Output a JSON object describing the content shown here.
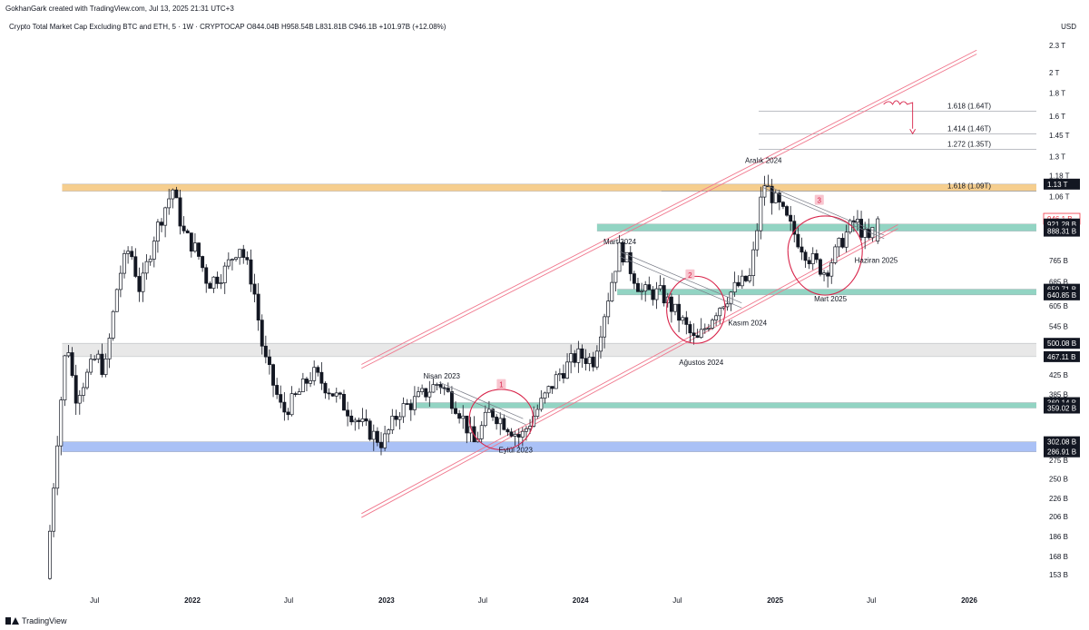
{
  "header": {
    "credit": "GokhanGark created with TradingView.com, Jul 13, 2025 21:31 UTC+3",
    "symbol_line": "Crypto Total Market Cap Excluding BTC and ETH, 5 · 1W · CRYPTOCAP  O844.04B  H958.54B  L831.81B  C946.1B  +101.97B (+12.08%)",
    "currency": "USD"
  },
  "footer": {
    "brand": "TradingView"
  },
  "colors": {
    "orange_zone": "#f5c57a",
    "teal_zone": "#7fcdb8",
    "grey_zone": "#e4e4e4",
    "blue_zone": "#9bb6f5",
    "channel": "#f0768c",
    "ellipse": "#d8244a",
    "candle": "#131722",
    "current_price": "#f23645"
  },
  "chart_data": {
    "type": "candlestick",
    "y_scale": "log",
    "y_ticks": [
      "2.3 T",
      "2 T",
      "1.8 T",
      "1.6 T",
      "1.45 T",
      "1.3 T",
      "1.18 T",
      "1.06 T",
      "765 B",
      "685 B",
      "605 B",
      "545 B",
      "425 B",
      "385 B",
      "275 B",
      "250 B",
      "226 B",
      "206 B",
      "186 B",
      "168 B",
      "153 B"
    ],
    "y_tick_values": [
      2300,
      2000,
      1800,
      1600,
      1450,
      1300,
      1180,
      1060,
      765,
      685,
      605,
      545,
      425,
      385,
      275,
      250,
      226,
      206,
      186,
      168,
      153
    ],
    "x_ticks": [
      "Jul",
      "2022",
      "Jul",
      "2023",
      "Jul",
      "2024",
      "Jul",
      "2025",
      "Jul",
      "2026"
    ],
    "x_tick_dates": [
      "2021-07-01",
      "2022-01-01",
      "2022-07-01",
      "2023-01-01",
      "2023-07-01",
      "2024-01-01",
      "2024-07-01",
      "2025-01-01",
      "2025-07-01",
      "2026-01-01"
    ],
    "price_tags": [
      {
        "label": "1.13 T",
        "value": 1130,
        "style": "dark"
      },
      {
        "label": "946.1 B",
        "value": 946.1,
        "style": "current"
      },
      {
        "label": "921.28 B",
        "value": 921.28,
        "style": "dark"
      },
      {
        "label": "888.31 B",
        "value": 888.31,
        "style": "dark"
      },
      {
        "label": "659.71 B",
        "value": 659.71,
        "style": "dark"
      },
      {
        "label": "640.85 B",
        "value": 640.85,
        "style": "dark"
      },
      {
        "label": "500.08 B",
        "value": 500.08,
        "style": "dark"
      },
      {
        "label": "467.11 B",
        "value": 467.11,
        "style": "dark"
      },
      {
        "label": "369.14 B",
        "value": 369.14,
        "style": "dark"
      },
      {
        "label": "359.02 B",
        "value": 359.02,
        "style": "dark"
      },
      {
        "label": "302.08 B",
        "value": 302.08,
        "style": "dark"
      },
      {
        "label": "286.91 B",
        "value": 286.91,
        "style": "dark"
      }
    ],
    "zones": [
      {
        "name": "orange",
        "from": 1090,
        "to": 1130,
        "start": "2021-05-01",
        "color_key": "orange_zone"
      },
      {
        "name": "teal-top",
        "from": 888.31,
        "to": 921.28,
        "start": "2024-02-01",
        "color_key": "teal_zone"
      },
      {
        "name": "teal-mid",
        "from": 640.85,
        "to": 659.71,
        "start": "2024-03-10",
        "color_key": "teal_zone"
      },
      {
        "name": "grey",
        "from": 467.11,
        "to": 500.08,
        "start": "2021-05-01",
        "color_key": "grey_zone"
      },
      {
        "name": "teal-low",
        "from": 359.02,
        "to": 369.14,
        "start": "2023-02-15",
        "color_key": "teal_zone"
      },
      {
        "name": "blue",
        "from": 286.91,
        "to": 302.08,
        "start": "2021-05-01",
        "color_key": "blue_zone"
      }
    ],
    "fib_levels": [
      {
        "label": "1.618 (1.64T)",
        "value": 1640
      },
      {
        "label": "1.414 (1.46T)",
        "value": 1460
      },
      {
        "label": "1.272 (1.35T)",
        "value": 1350
      },
      {
        "label": "1.618 (1.09T)",
        "value": 1090
      }
    ],
    "annotations": [
      {
        "text": "Nisan 2023",
        "date": "2023-04-15",
        "value": 418
      },
      {
        "text": "Eylül 2023",
        "date": "2023-09-01",
        "value": 286
      },
      {
        "text": "Mart 2024",
        "date": "2024-03-15",
        "value": 830
      },
      {
        "text": "Ağustos 2024",
        "date": "2024-08-15",
        "value": 448
      },
      {
        "text": "Kasım 2024",
        "date": "2024-11-10",
        "value": 548
      },
      {
        "text": "Aralık 2024",
        "date": "2024-12-10",
        "value": 1260
      },
      {
        "text": "Mart 2025",
        "date": "2025-04-15",
        "value": 620
      },
      {
        "text": "Haziran 2025",
        "date": "2025-07-10",
        "value": 755
      }
    ],
    "markers": [
      {
        "label": "1",
        "date": "2023-08-05",
        "value": 405
      },
      {
        "label": "2",
        "date": "2024-07-25",
        "value": 710
      },
      {
        "label": "3",
        "date": "2025-03-25",
        "value": 1040
      }
    ],
    "ellipses": [
      {
        "center": "2023-08-05",
        "half_width_days": 60,
        "center_value": 340,
        "top_value": 395,
        "bottom_value": 290
      },
      {
        "center": "2024-08-05",
        "half_width_days": 55,
        "center_value": 595,
        "top_value": 705,
        "bottom_value": 500
      },
      {
        "center": "2025-04-05",
        "half_width_days": 70,
        "center_value": 805,
        "top_value": 960,
        "bottom_value": 640
      }
    ],
    "channel": {
      "upper_start": {
        "date": "2022-11-15",
        "value": 440
      },
      "upper_end": {
        "date": "2026-01-15",
        "value": 2200
      },
      "lower_start": {
        "date": "2022-11-15",
        "value": 205
      },
      "lower_end": {
        "date": "2025-08-20",
        "value": 900
      },
      "lines_offset": 0.02
    },
    "downtrend_lines": [
      {
        "from": {
          "date": "2023-04-10",
          "value": 410
        },
        "to": {
          "date": "2023-09-15",
          "value": 340
        }
      },
      {
        "from": {
          "date": "2023-04-10",
          "value": 400
        },
        "to": {
          "date": "2023-09-20",
          "value": 330
        }
      },
      {
        "from": {
          "date": "2024-03-15",
          "value": 800
        },
        "to": {
          "date": "2024-10-30",
          "value": 615
        }
      },
      {
        "from": {
          "date": "2024-03-15",
          "value": 780
        },
        "to": {
          "date": "2024-10-30",
          "value": 600
        }
      },
      {
        "from": {
          "date": "2024-12-10",
          "value": 1130
        },
        "to": {
          "date": "2025-07-25",
          "value": 870
        }
      },
      {
        "from": {
          "date": "2024-12-10",
          "value": 1110
        },
        "to": {
          "date": "2025-07-25",
          "value": 855
        }
      }
    ],
    "path_keys": [
      [
        "2021-04-01",
        150
      ],
      [
        "2021-04-20",
        290
      ],
      [
        "2021-05-10",
        520
      ],
      [
        "2021-05-25",
        380
      ],
      [
        "2021-06-15",
        420
      ],
      [
        "2021-07-05",
        470
      ],
      [
        "2021-07-20",
        430
      ],
      [
        "2021-08-15",
        700
      ],
      [
        "2021-09-05",
        820
      ],
      [
        "2021-09-25",
        650
      ],
      [
        "2021-10-20",
        860
      ],
      [
        "2021-11-10",
        1000
      ],
      [
        "2021-11-25",
        1100
      ],
      [
        "2021-12-15",
        880
      ],
      [
        "2022-01-10",
        800
      ],
      [
        "2022-01-30",
        680
      ],
      [
        "2022-03-01",
        720
      ],
      [
        "2022-03-30",
        830
      ],
      [
        "2022-04-25",
        680
      ],
      [
        "2022-05-15",
        470
      ],
      [
        "2022-06-20",
        350
      ],
      [
        "2022-07-15",
        380
      ],
      [
        "2022-08-15",
        430
      ],
      [
        "2022-09-20",
        390
      ],
      [
        "2022-11-15",
        330
      ],
      [
        "2022-12-25",
        300
      ],
      [
        "2023-01-25",
        355
      ],
      [
        "2023-02-20",
        370
      ],
      [
        "2023-04-10",
        410
      ],
      [
        "2023-05-15",
        360
      ],
      [
        "2023-06-15",
        300
      ],
      [
        "2023-07-15",
        355
      ],
      [
        "2023-08-15",
        330
      ],
      [
        "2023-09-10",
        308
      ],
      [
        "2023-10-20",
        370
      ],
      [
        "2023-11-20",
        425
      ],
      [
        "2023-12-25",
        470
      ],
      [
        "2024-01-25",
        460
      ],
      [
        "2024-03-15",
        820
      ],
      [
        "2024-04-25",
        650
      ],
      [
        "2024-06-01",
        645
      ],
      [
        "2024-07-10",
        560
      ],
      [
        "2024-08-05",
        500
      ],
      [
        "2024-09-10",
        590
      ],
      [
        "2024-10-15",
        660
      ],
      [
        "2024-11-15",
        700
      ],
      [
        "2024-12-10",
        1140
      ],
      [
        "2025-01-10",
        1000
      ],
      [
        "2025-02-05",
        880
      ],
      [
        "2025-03-05",
        780
      ],
      [
        "2025-04-05",
        720
      ],
      [
        "2025-05-10",
        860
      ],
      [
        "2025-06-01",
        940
      ],
      [
        "2025-06-25",
        840
      ],
      [
        "2025-07-13",
        946
      ]
    ],
    "last_candle": {
      "date": "2025-07-13",
      "open": 844.04,
      "high": 958.54,
      "low": 831.81,
      "close": 946.1
    }
  }
}
